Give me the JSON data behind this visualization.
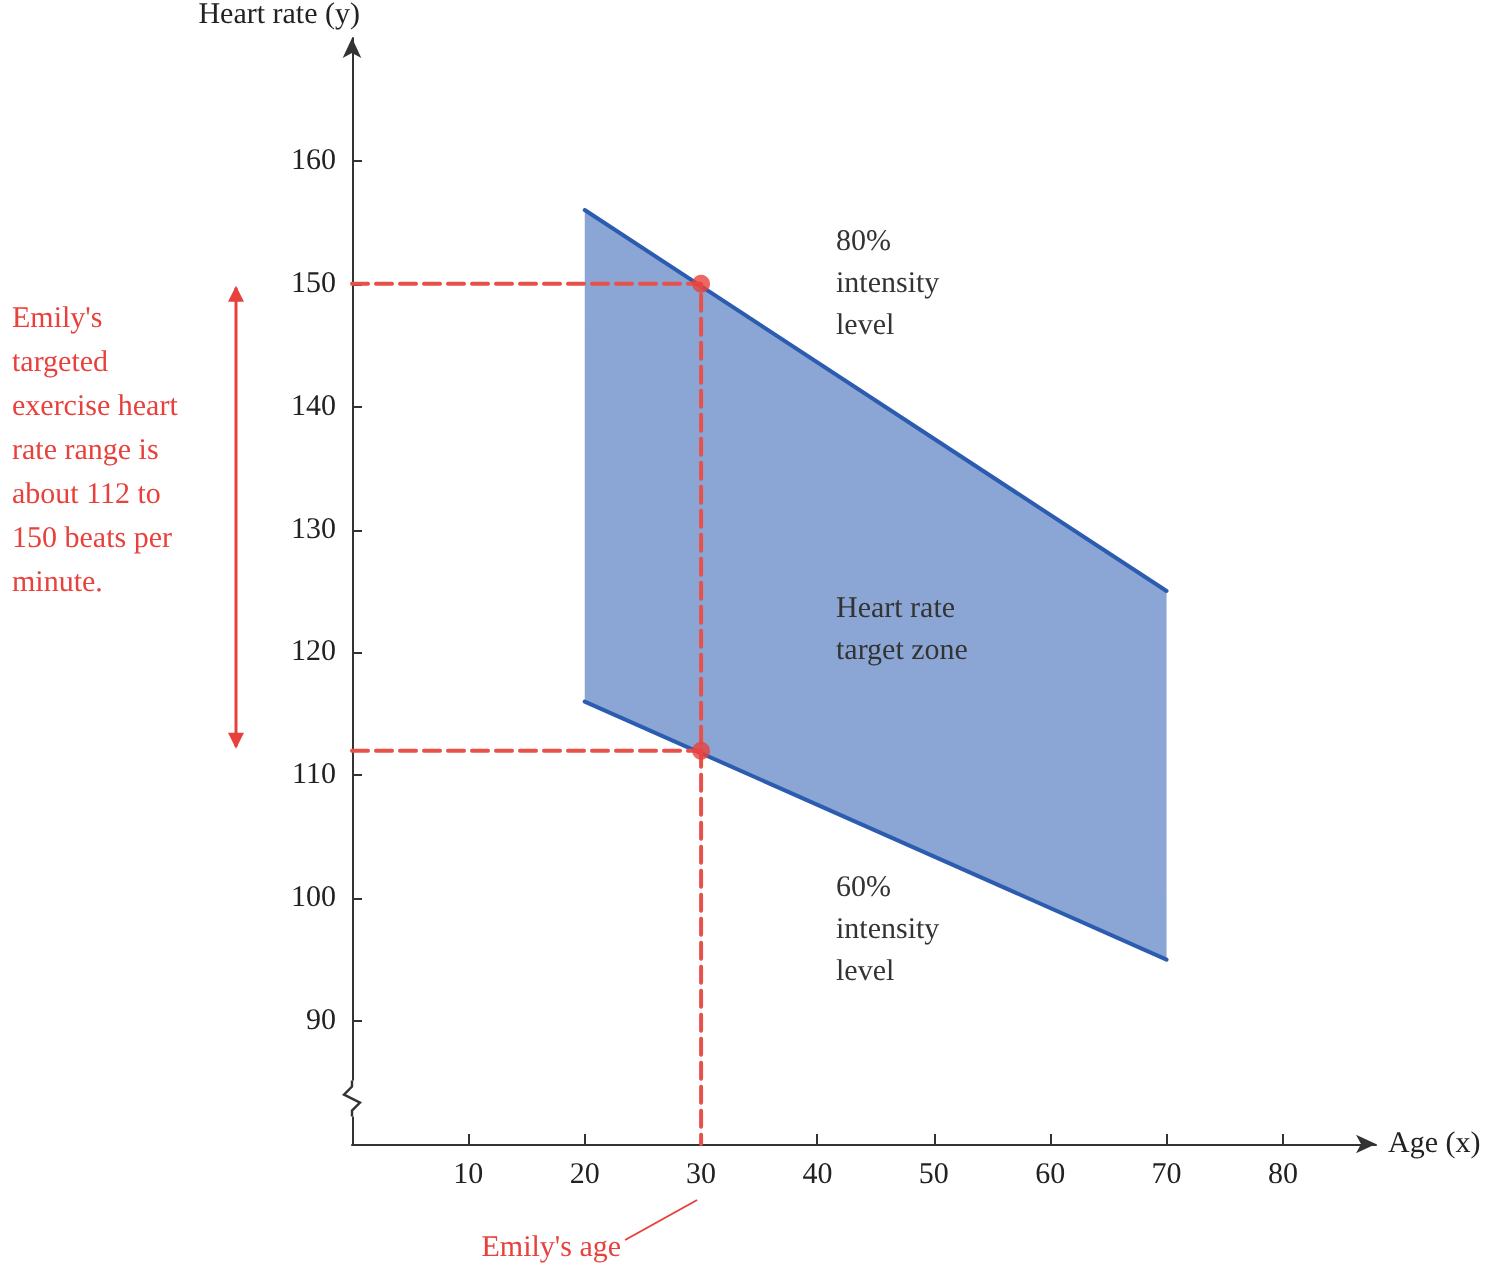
{
  "chart_data": {
    "type": "line",
    "xlabel": "Age (x)",
    "ylabel": "Heart rate (y)",
    "xlim": [
      0,
      88
    ],
    "xticks": [
      10,
      20,
      30,
      40,
      50,
      60,
      70,
      80
    ],
    "ylim": [
      80,
      170
    ],
    "yticks": [
      90,
      100,
      110,
      120,
      130,
      140,
      150,
      160
    ],
    "grid": false,
    "series": [
      {
        "color": "#2c5cb0",
        "x": [
          20,
          70
        ],
        "values": [
          156,
          125
        ],
        "lower": [
          116,
          95
        ],
        "upper": [
          156,
          125
        ]
      },
      {
        "color": "#2c5cb0",
        "x": [
          20,
          70
        ],
        "values": [
          116,
          95
        ]
      },
      {
        "color": "#e8504a",
        "line_style": "dashed",
        "x": [
          0,
          30,
          30
        ],
        "values": [
          150,
          150,
          80
        ]
      },
      {
        "color": "#e8504a",
        "line_style": "dashed",
        "x": [
          0,
          30
        ],
        "values": [
          112,
          112
        ]
      },
      {
        "type": "scatter",
        "color": "#e8413c",
        "marker": "circle",
        "x": [
          30,
          30
        ],
        "values": [
          150,
          112
        ]
      }
    ],
    "annotations": [
      "Emily's targeted exercise heart rate range is about 112 to 150 beats per minute.",
      "Emily's age",
      "80% intensity level",
      "Heart rate target zone",
      "60% intensity level"
    ]
  }
}
